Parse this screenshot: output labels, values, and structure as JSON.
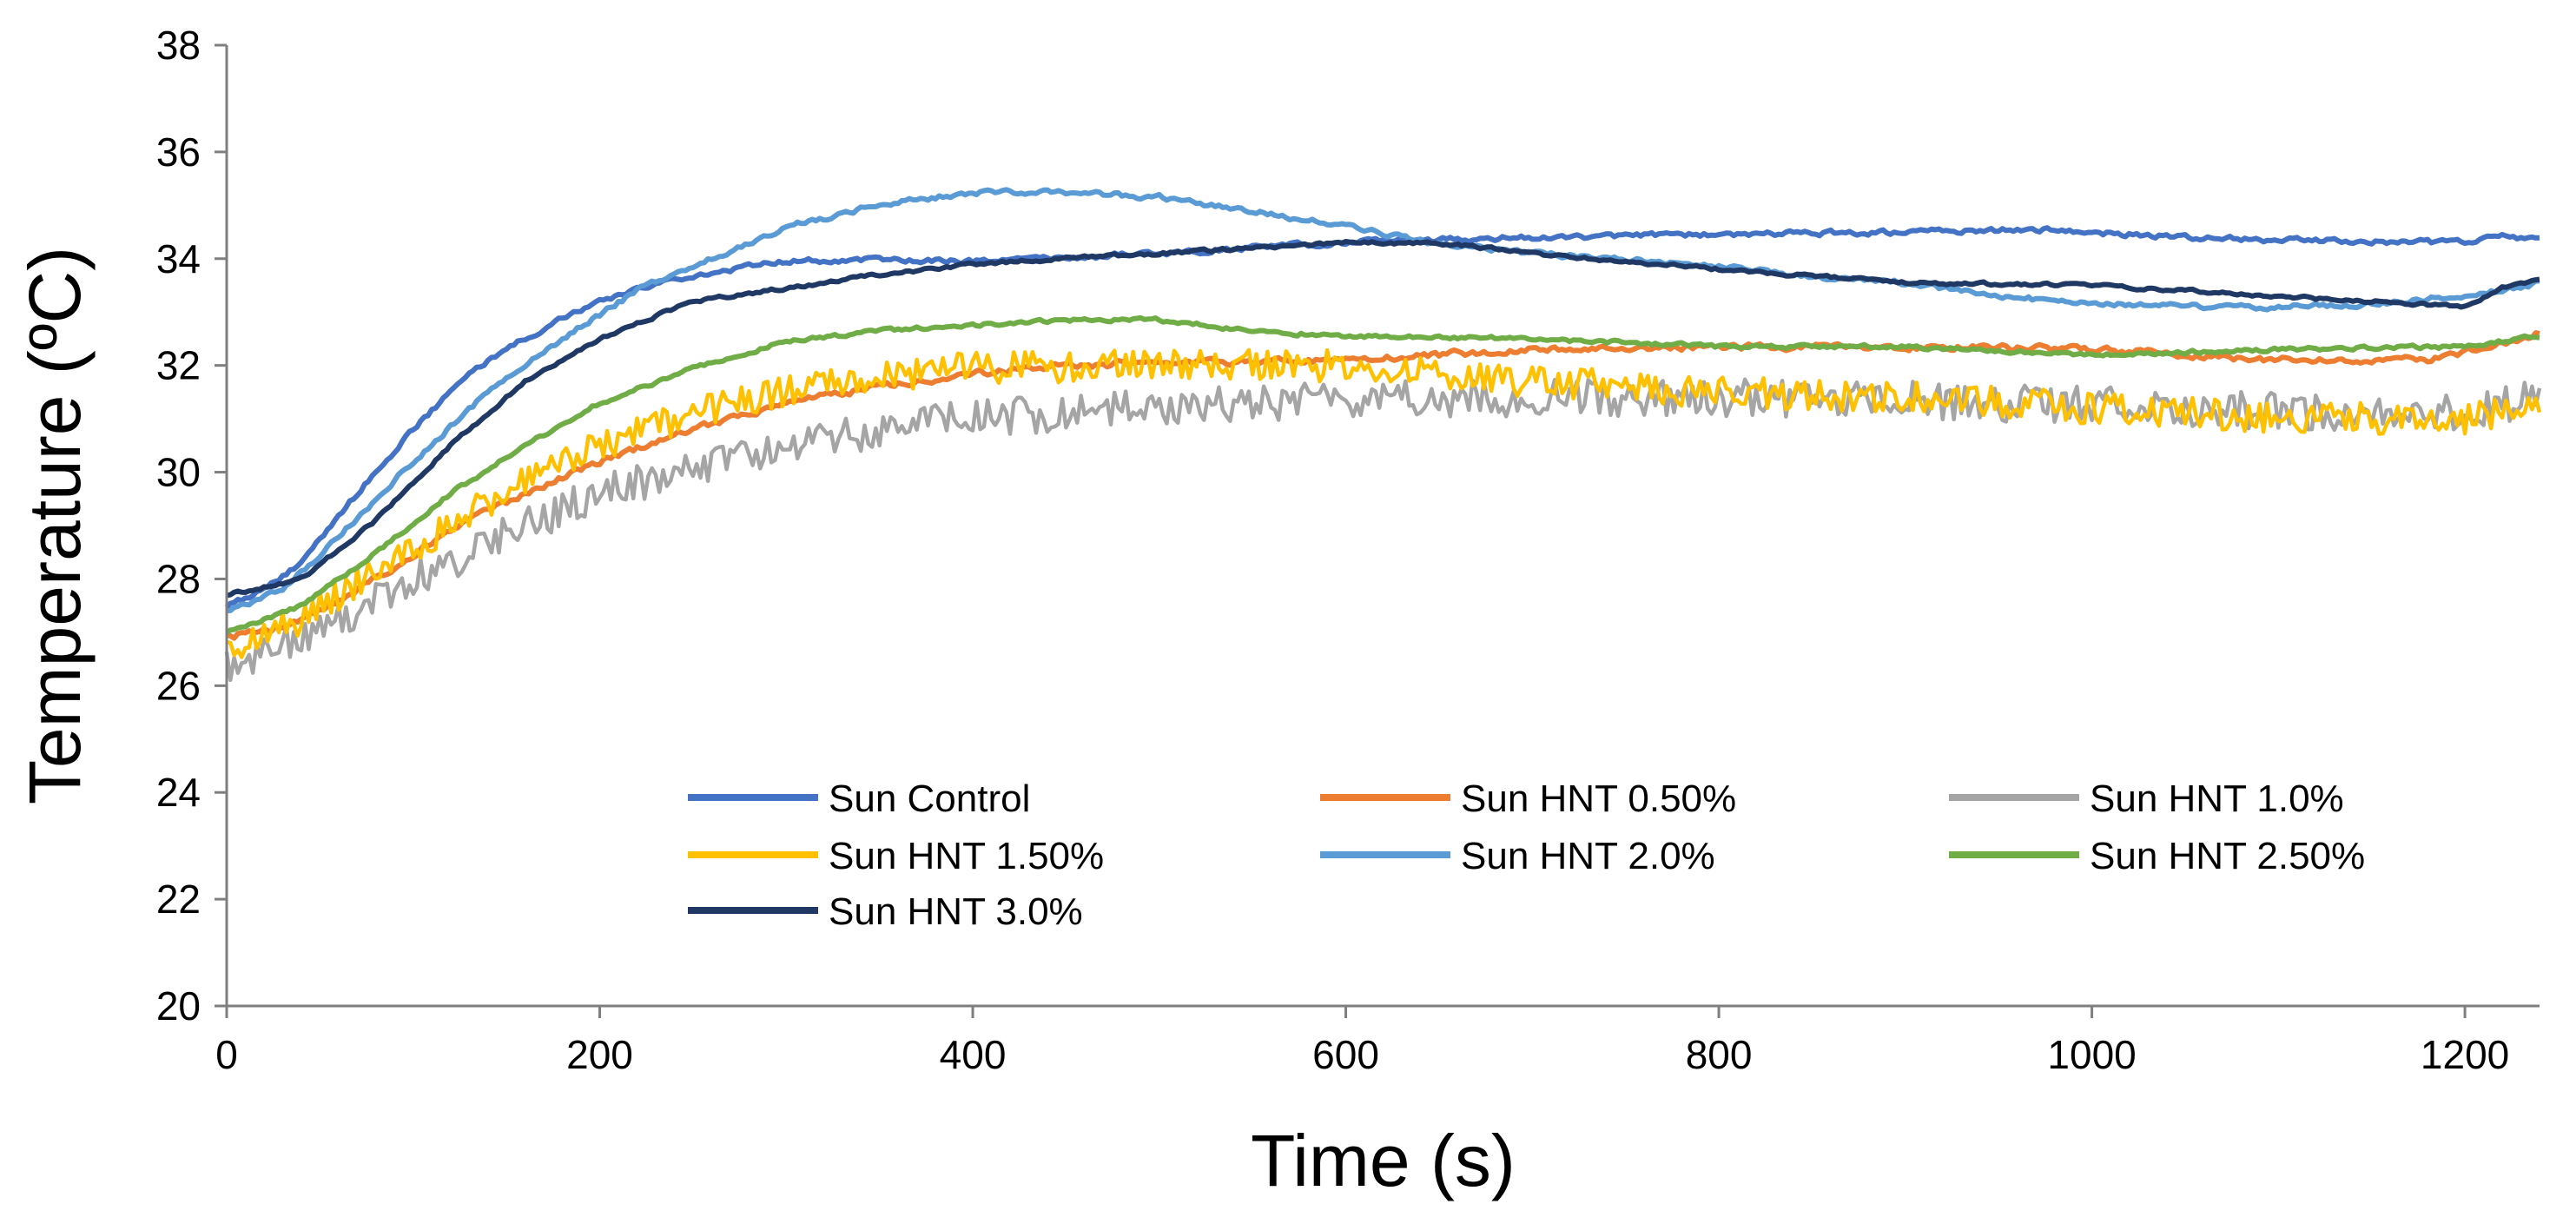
{
  "chart_data": {
    "type": "line",
    "title": "",
    "xlabel": "Time (s)",
    "ylabel": "Temperature (ºC)",
    "xlim": [
      0,
      1240
    ],
    "ylim": [
      20,
      38
    ],
    "xticks": [
      "0",
      "200",
      "400",
      "600",
      "800",
      "1000",
      "1200"
    ],
    "yticks": [
      "20",
      "22",
      "24",
      "26",
      "28",
      "30",
      "32",
      "34",
      "36",
      "38"
    ],
    "grid": false,
    "legend_position": "bottom-inside",
    "series": [
      {
        "name": "Sun Control",
        "color": "#4472C4",
        "noise": 0.08,
        "points": [
          [
            0,
            27.5
          ],
          [
            20,
            27.8
          ],
          [
            40,
            28.3
          ],
          [
            60,
            29.2
          ],
          [
            80,
            30.0
          ],
          [
            100,
            30.8
          ],
          [
            120,
            31.5
          ],
          [
            140,
            32.1
          ],
          [
            160,
            32.5
          ],
          [
            180,
            32.9
          ],
          [
            200,
            33.2
          ],
          [
            230,
            33.5
          ],
          [
            260,
            33.75
          ],
          [
            300,
            33.95
          ],
          [
            350,
            34.0
          ],
          [
            400,
            33.95
          ],
          [
            500,
            34.1
          ],
          [
            600,
            34.3
          ],
          [
            700,
            34.4
          ],
          [
            800,
            34.45
          ],
          [
            900,
            34.5
          ],
          [
            970,
            34.55
          ],
          [
            1050,
            34.4
          ],
          [
            1100,
            34.35
          ],
          [
            1200,
            34.3
          ],
          [
            1220,
            34.45
          ],
          [
            1240,
            34.35
          ]
        ]
      },
      {
        "name": "Sun HNT 0.50%",
        "color": "#ED7D31",
        "noise": 0.1,
        "points": [
          [
            0,
            26.9
          ],
          [
            40,
            27.2
          ],
          [
            80,
            28.0
          ],
          [
            120,
            28.9
          ],
          [
            160,
            29.6
          ],
          [
            200,
            30.2
          ],
          [
            250,
            30.8
          ],
          [
            300,
            31.3
          ],
          [
            350,
            31.6
          ],
          [
            400,
            31.85
          ],
          [
            450,
            32.0
          ],
          [
            500,
            32.05
          ],
          [
            600,
            32.1
          ],
          [
            700,
            32.3
          ],
          [
            800,
            32.35
          ],
          [
            900,
            32.35
          ],
          [
            1000,
            32.3
          ],
          [
            1100,
            32.1
          ],
          [
            1180,
            32.1
          ],
          [
            1220,
            32.4
          ],
          [
            1240,
            32.6
          ]
        ]
      },
      {
        "name": "Sun HNT 1.0%",
        "color": "#A5A5A5",
        "noise": 0.35,
        "points": [
          [
            0,
            26.4
          ],
          [
            40,
            26.9
          ],
          [
            80,
            27.6
          ],
          [
            120,
            28.3
          ],
          [
            160,
            29.0
          ],
          [
            200,
            29.6
          ],
          [
            250,
            30.1
          ],
          [
            300,
            30.5
          ],
          [
            350,
            30.8
          ],
          [
            400,
            31.0
          ],
          [
            500,
            31.2
          ],
          [
            600,
            31.35
          ],
          [
            700,
            31.4
          ],
          [
            800,
            31.4
          ],
          [
            900,
            31.35
          ],
          [
            1000,
            31.25
          ],
          [
            1100,
            31.15
          ],
          [
            1200,
            31.1
          ],
          [
            1240,
            31.4
          ]
        ]
      },
      {
        "name": "Sun HNT 1.50%",
        "color": "#FFC000",
        "noise": 0.3,
        "points": [
          [
            0,
            26.7
          ],
          [
            40,
            27.2
          ],
          [
            80,
            28.2
          ],
          [
            120,
            29.0
          ],
          [
            160,
            29.9
          ],
          [
            200,
            30.5
          ],
          [
            250,
            31.1
          ],
          [
            300,
            31.5
          ],
          [
            350,
            31.8
          ],
          [
            400,
            31.95
          ],
          [
            500,
            32.0
          ],
          [
            600,
            32.0
          ],
          [
            700,
            31.7
          ],
          [
            800,
            31.5
          ],
          [
            900,
            31.4
          ],
          [
            1000,
            31.2
          ],
          [
            1100,
            31.0
          ],
          [
            1200,
            31.0
          ],
          [
            1240,
            31.3
          ]
        ]
      },
      {
        "name": "Sun HNT 2.0%",
        "color": "#5B9BD5",
        "noise": 0.08,
        "points": [
          [
            0,
            27.4
          ],
          [
            30,
            27.8
          ],
          [
            60,
            28.8
          ],
          [
            100,
            30.2
          ],
          [
            140,
            31.5
          ],
          [
            180,
            32.5
          ],
          [
            220,
            33.4
          ],
          [
            260,
            34.0
          ],
          [
            300,
            34.6
          ],
          [
            350,
            35.0
          ],
          [
            400,
            35.25
          ],
          [
            450,
            35.25
          ],
          [
            500,
            35.15
          ],
          [
            550,
            34.9
          ],
          [
            600,
            34.6
          ],
          [
            650,
            34.3
          ],
          [
            700,
            34.1
          ],
          [
            750,
            34.0
          ],
          [
            800,
            33.85
          ],
          [
            850,
            33.65
          ],
          [
            900,
            33.55
          ],
          [
            950,
            33.3
          ],
          [
            1000,
            33.15
          ],
          [
            1050,
            33.1
          ],
          [
            1100,
            33.1
          ],
          [
            1150,
            33.15
          ],
          [
            1200,
            33.3
          ],
          [
            1240,
            33.55
          ]
        ]
      },
      {
        "name": "Sun HNT 2.50%",
        "color": "#70AD47",
        "noise": 0.06,
        "points": [
          [
            0,
            27.0
          ],
          [
            40,
            27.5
          ],
          [
            80,
            28.5
          ],
          [
            120,
            29.6
          ],
          [
            160,
            30.5
          ],
          [
            200,
            31.3
          ],
          [
            250,
            31.95
          ],
          [
            300,
            32.45
          ],
          [
            350,
            32.65
          ],
          [
            400,
            32.75
          ],
          [
            450,
            32.85
          ],
          [
            500,
            32.85
          ],
          [
            550,
            32.65
          ],
          [
            600,
            32.55
          ],
          [
            700,
            32.5
          ],
          [
            800,
            32.35
          ],
          [
            900,
            32.35
          ],
          [
            1000,
            32.2
          ],
          [
            1100,
            32.3
          ],
          [
            1200,
            32.35
          ],
          [
            1240,
            32.55
          ]
        ]
      },
      {
        "name": "Sun HNT 3.0%",
        "color": "#203864",
        "noise": 0.05,
        "points": [
          [
            0,
            27.7
          ],
          [
            40,
            28.0
          ],
          [
            80,
            29.1
          ],
          [
            120,
            30.5
          ],
          [
            160,
            31.7
          ],
          [
            200,
            32.5
          ],
          [
            250,
            33.2
          ],
          [
            300,
            33.45
          ],
          [
            350,
            33.7
          ],
          [
            400,
            33.9
          ],
          [
            500,
            34.1
          ],
          [
            600,
            34.3
          ],
          [
            650,
            34.3
          ],
          [
            700,
            34.1
          ],
          [
            800,
            33.8
          ],
          [
            900,
            33.55
          ],
          [
            1000,
            33.5
          ],
          [
            1100,
            33.3
          ],
          [
            1200,
            33.1
          ],
          [
            1220,
            33.45
          ],
          [
            1240,
            33.6
          ]
        ]
      }
    ]
  }
}
